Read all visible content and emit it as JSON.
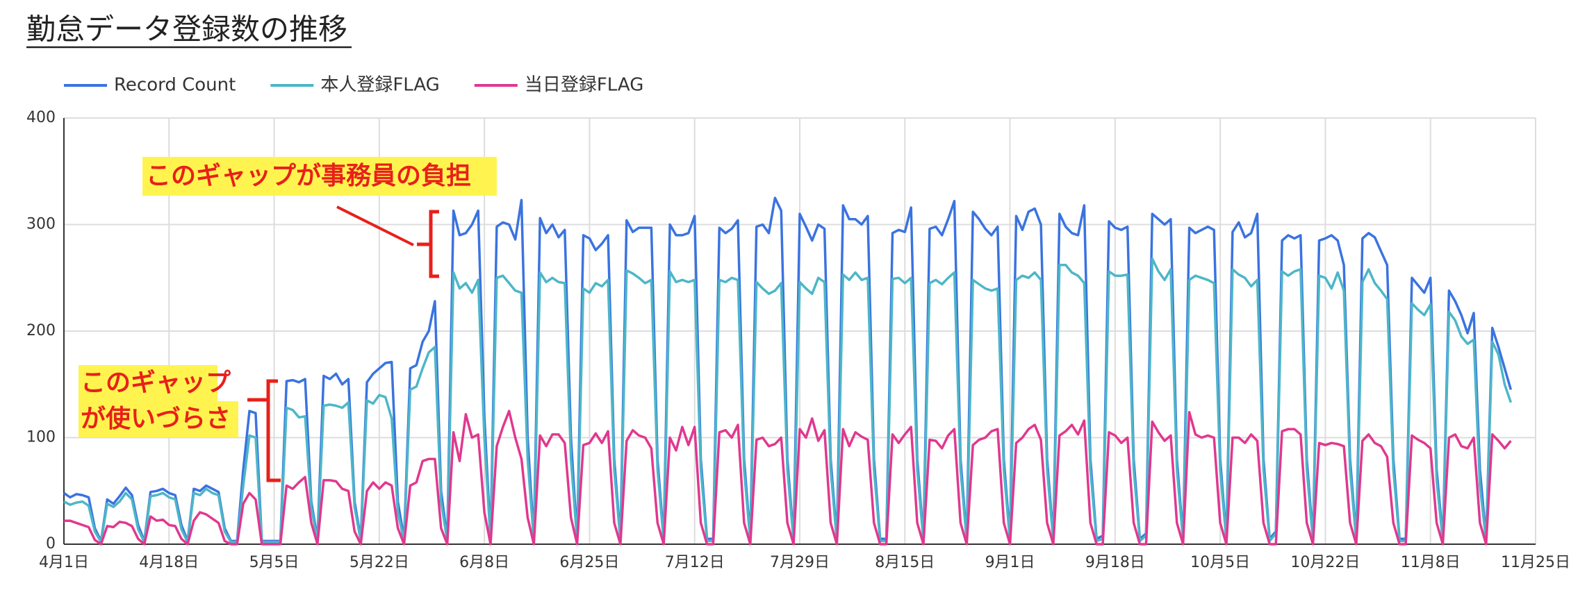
{
  "chart_data": {
    "type": "line",
    "title": "勤怠データ登録数の推移",
    "categories": [
      "4月1日",
      null,
      null,
      null,
      null,
      null,
      null,
      null,
      null,
      null,
      null,
      null,
      null,
      null,
      null,
      null,
      null,
      "4月18日",
      null,
      null,
      null,
      null,
      null,
      null,
      null,
      null,
      null,
      null,
      null,
      null,
      null,
      null,
      null,
      null,
      "5月5日",
      null,
      null,
      null,
      null,
      null,
      null,
      null,
      null,
      null,
      null,
      null,
      null,
      null,
      null,
      null,
      null,
      "5月22日",
      null,
      null,
      null,
      null,
      null,
      null,
      null,
      null,
      null,
      null,
      null,
      null,
      null,
      null,
      null,
      null,
      "6月8日",
      null,
      null,
      null,
      null,
      null,
      null,
      null,
      null,
      null,
      null,
      null,
      null,
      null,
      null,
      null,
      null,
      "6月25日",
      null,
      null,
      null,
      null,
      null,
      null,
      null,
      null,
      null,
      null,
      null,
      null,
      null,
      null,
      null,
      null,
      "7月12日",
      null,
      null,
      null,
      null,
      null,
      null,
      null,
      null,
      null,
      null,
      null,
      null,
      null,
      null,
      null,
      null,
      "7月29日",
      null,
      null,
      null,
      null,
      null,
      null,
      null,
      null,
      null,
      null,
      null,
      null,
      null,
      null,
      null,
      null,
      "8月15日",
      null,
      null,
      null,
      null,
      null,
      null,
      null,
      null,
      null,
      null,
      null,
      null,
      null,
      null,
      null,
      null,
      "9月1日",
      null,
      null,
      null,
      null,
      null,
      null,
      null,
      null,
      null,
      null,
      null,
      null,
      null,
      null,
      null,
      null,
      "9月18日",
      null,
      null,
      null,
      null,
      null,
      null,
      null,
      null,
      null,
      null,
      null,
      null,
      null,
      null,
      null,
      null,
      "10月5日",
      null,
      null,
      null,
      null,
      null,
      null,
      null,
      null,
      null,
      null,
      null,
      null,
      null,
      null,
      null,
      null,
      "10月22日",
      null,
      null,
      null,
      null,
      null,
      null,
      null,
      null,
      null,
      null,
      null,
      null,
      null,
      null,
      null,
      null,
      "11月8日",
      null,
      null,
      null,
      null,
      null,
      null,
      null,
      null,
      null,
      null,
      null,
      null,
      null,
      null,
      null,
      null,
      "11月25日"
    ],
    "series": [
      {
        "name": "Record Count",
        "color": "#3a73e0",
        "values": [
          48,
          44,
          47,
          46,
          44,
          15,
          3,
          42,
          38,
          45,
          53,
          46,
          18,
          3,
          49,
          50,
          52,
          48,
          46,
          18,
          3,
          52,
          50,
          55,
          52,
          49,
          15,
          3,
          3,
          70,
          125,
          123,
          3,
          3,
          3,
          3,
          153,
          154,
          152,
          155,
          40,
          5,
          158,
          155,
          160,
          150,
          155,
          40,
          5,
          152,
          160,
          165,
          170,
          171,
          40,
          5,
          165,
          168,
          190,
          200,
          228,
          50,
          5,
          313,
          290,
          292,
          300,
          313,
          120,
          5,
          298,
          302,
          300,
          286,
          323,
          100,
          5,
          306,
          292,
          300,
          288,
          295,
          100,
          5,
          290,
          287,
          276,
          282,
          290,
          80,
          5,
          304,
          293,
          297,
          297,
          297,
          80,
          5,
          300,
          290,
          290,
          292,
          308,
          80,
          5,
          5,
          297,
          292,
          296,
          304,
          80,
          5,
          298,
          300,
          292,
          325,
          313,
          80,
          5,
          310,
          298,
          285,
          300,
          296,
          80,
          5,
          318,
          305,
          305,
          300,
          308,
          80,
          5,
          5,
          292,
          295,
          293,
          316,
          80,
          5,
          296,
          298,
          290,
          305,
          322,
          80,
          5,
          312,
          305,
          296,
          290,
          298,
          80,
          5,
          308,
          295,
          312,
          315,
          300,
          80,
          5,
          310,
          298,
          292,
          290,
          318,
          80,
          5,
          8,
          303,
          297,
          295,
          298,
          80,
          5,
          10,
          310,
          305,
          300,
          305,
          80,
          5,
          297,
          292,
          295,
          298,
          295,
          80,
          5,
          293,
          302,
          288,
          292,
          310,
          80,
          5,
          12,
          285,
          290,
          287,
          290,
          80,
          5,
          285,
          287,
          290,
          285,
          262,
          80,
          5,
          287,
          292,
          288,
          275,
          262,
          80,
          5,
          5,
          250,
          243,
          236,
          250,
          70,
          5,
          238,
          228,
          215,
          198,
          217,
          70,
          5,
          203,
          185,
          165,
          145,
          null,
          null,
          null,
          null
        ]
      },
      {
        "name": "本人登録FLAG",
        "color": "#4db6c8",
        "values": [
          40,
          37,
          39,
          40,
          36,
          12,
          2,
          38,
          35,
          40,
          48,
          42,
          14,
          2,
          45,
          46,
          48,
          44,
          42,
          14,
          2,
          48,
          46,
          52,
          48,
          46,
          12,
          2,
          2,
          55,
          102,
          100,
          2,
          2,
          2,
          2,
          128,
          126,
          119,
          120,
          35,
          3,
          130,
          131,
          130,
          128,
          133,
          35,
          3,
          135,
          132,
          140,
          138,
          118,
          30,
          3,
          145,
          148,
          165,
          180,
          185,
          40,
          3,
          255,
          240,
          245,
          236,
          248,
          100,
          3,
          250,
          252,
          245,
          238,
          236,
          80,
          3,
          255,
          246,
          250,
          246,
          245,
          80,
          3,
          240,
          236,
          245,
          242,
          248,
          70,
          3,
          257,
          254,
          250,
          245,
          248,
          70,
          3,
          256,
          246,
          248,
          246,
          248,
          70,
          3,
          3,
          248,
          246,
          250,
          248,
          70,
          3,
          246,
          240,
          235,
          238,
          245,
          70,
          3,
          246,
          240,
          235,
          250,
          246,
          70,
          3,
          253,
          248,
          255,
          248,
          250,
          70,
          3,
          3,
          249,
          250,
          245,
          250,
          70,
          3,
          245,
          248,
          244,
          250,
          255,
          70,
          3,
          248,
          244,
          240,
          238,
          240,
          70,
          3,
          248,
          252,
          250,
          255,
          248,
          70,
          3,
          262,
          262,
          255,
          252,
          245,
          70,
          3,
          5,
          256,
          252,
          252,
          253,
          70,
          3,
          8,
          268,
          256,
          248,
          258,
          70,
          3,
          248,
          252,
          250,
          248,
          245,
          70,
          3,
          258,
          253,
          250,
          242,
          248,
          70,
          3,
          10,
          256,
          252,
          256,
          258,
          70,
          3,
          252,
          250,
          240,
          255,
          238,
          70,
          3,
          246,
          258,
          245,
          238,
          230,
          70,
          3,
          3,
          226,
          220,
          215,
          225,
          60,
          3,
          218,
          210,
          195,
          188,
          192,
          55,
          3,
          190,
          178,
          150,
          133,
          null,
          null,
          null,
          null
        ]
      },
      {
        "name": "当日登録FLAG",
        "color": "#e0388f",
        "values": [
          22,
          22,
          20,
          18,
          16,
          4,
          0,
          17,
          16,
          21,
          20,
          17,
          5,
          0,
          26,
          22,
          23,
          18,
          17,
          5,
          0,
          22,
          30,
          28,
          24,
          20,
          3,
          0,
          0,
          38,
          48,
          42,
          0,
          0,
          0,
          0,
          55,
          52,
          58,
          63,
          20,
          0,
          60,
          60,
          59,
          52,
          50,
          12,
          0,
          50,
          58,
          52,
          58,
          55,
          15,
          0,
          55,
          58,
          78,
          80,
          80,
          15,
          0,
          105,
          78,
          122,
          100,
          103,
          30,
          0,
          92,
          110,
          125,
          100,
          80,
          25,
          0,
          102,
          92,
          103,
          103,
          95,
          25,
          0,
          93,
          95,
          104,
          95,
          106,
          20,
          0,
          97,
          107,
          102,
          100,
          90,
          20,
          0,
          100,
          88,
          110,
          93,
          110,
          20,
          0,
          0,
          105,
          107,
          100,
          112,
          20,
          0,
          98,
          100,
          92,
          94,
          100,
          20,
          0,
          108,
          100,
          118,
          97,
          107,
          20,
          0,
          108,
          92,
          105,
          101,
          98,
          20,
          0,
          0,
          103,
          95,
          103,
          110,
          20,
          0,
          98,
          97,
          90,
          102,
          108,
          20,
          0,
          93,
          98,
          100,
          106,
          108,
          20,
          0,
          95,
          100,
          108,
          112,
          98,
          20,
          0,
          102,
          106,
          112,
          103,
          116,
          20,
          0,
          0,
          105,
          102,
          95,
          100,
          20,
          0,
          0,
          115,
          105,
          97,
          102,
          20,
          0,
          124,
          103,
          100,
          102,
          100,
          20,
          0,
          100,
          100,
          95,
          103,
          97,
          20,
          0,
          0,
          106,
          108,
          108,
          103,
          20,
          0,
          95,
          93,
          95,
          94,
          92,
          20,
          0,
          97,
          103,
          95,
          92,
          82,
          20,
          0,
          0,
          102,
          98,
          95,
          90,
          20,
          0,
          100,
          103,
          92,
          90,
          100,
          20,
          0,
          103,
          97,
          90,
          97,
          null,
          null,
          null,
          null
        ]
      }
    ],
    "ylim": [
      0,
      400
    ],
    "yticks": [
      0,
      100,
      200,
      300,
      400
    ],
    "grid": true,
    "annotations": [
      "このギャップが事務員の負担",
      "このギャップ",
      "が使いづらさ"
    ]
  }
}
